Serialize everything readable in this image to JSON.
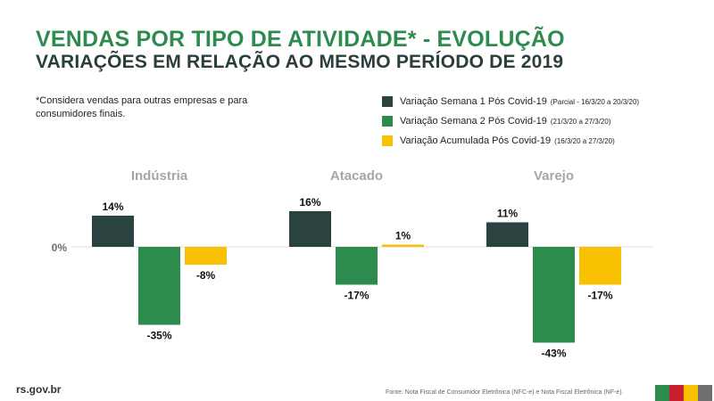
{
  "header": {
    "title": "VENDAS POR TIPO DE ATIVIDADE* - EVOLUÇÃO",
    "subtitle": "VARIAÇÕES EM RELAÇÃO AO MESMO PERÍODO DE 2019"
  },
  "note": "*Considera vendas para outras empresas e para consumidores finais.",
  "legend": [
    {
      "label": "Variação Semana 1 Pós Covid-19",
      "note": "(Parcial - 16/3/20 a 20/3/20)",
      "color": "#2a4340"
    },
    {
      "label": "Variação Semana 2 Pós Covid-19",
      "note": "(21/3/20 a 27/3/20)",
      "color": "#2e8b4e"
    },
    {
      "label": "Variação Acumulada Pós Covid-19",
      "note": "(16/3/20 a 27/3/20)",
      "color": "#f7c000"
    }
  ],
  "chart_data": {
    "type": "bar",
    "categories": [
      "Indústria",
      "Atacado",
      "Varejo"
    ],
    "series": [
      {
        "name": "Variação Semana 1 Pós Covid-19",
        "values": [
          14,
          16,
          11
        ],
        "labels": [
          "14%",
          "16%",
          "11%"
        ],
        "color": "#2a4340"
      },
      {
        "name": "Variação Semana 2 Pós Covid-19",
        "values": [
          -35,
          -17,
          -43
        ],
        "labels": [
          "-35%",
          "-17%",
          "-43%"
        ],
        "color": "#2e8b4e"
      },
      {
        "name": "Variação Acumulada Pós Covid-19",
        "values": [
          -8,
          1,
          -17
        ],
        "labels": [
          "-8%",
          "1%",
          "-17%"
        ],
        "color": "#f7c000"
      }
    ],
    "zero_label": "0%",
    "unit": "%"
  },
  "footer": {
    "site": "rs.gov.br",
    "source": "Fonte: Nota Fiscal de Consumidor Eletrônica (NFC-e) e Nota Fiscal Eletrônica (NF-e).",
    "flag_colors": [
      "#2e8b4e",
      "#c8202f",
      "#f7c000",
      "#6e6e6e"
    ]
  }
}
